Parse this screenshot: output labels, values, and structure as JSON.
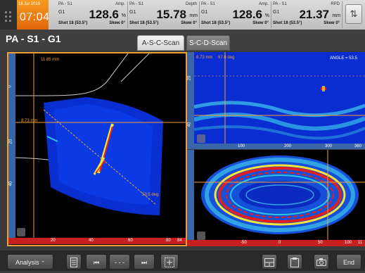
{
  "clock": {
    "date": "18 Jul 2019",
    "time": "07:04"
  },
  "readouts": [
    {
      "line1": "PA - S1",
      "unit_label": "Amp.",
      "line2": "G1",
      "value": "128.6",
      "unit": "%",
      "shot": "Shot 18 (53.5°)",
      "skew": "Skew 0°"
    },
    {
      "line1": "PA - S1",
      "unit_label": "Depth",
      "line2": "G1",
      "value": "15.78",
      "unit": "mm",
      "shot": "Shot 18 (53.5°)",
      "skew": "Skew 0°"
    },
    {
      "line1": "PA - S1",
      "unit_label": "Amp.",
      "line2": "G1",
      "value": "128.6",
      "unit": "%",
      "shot": "Shot 18 (53.5°)",
      "skew": "Skew 0°"
    },
    {
      "line1": "PA - S1",
      "unit_label": "RPD",
      "line2": "G1",
      "value": "21.37",
      "unit": "mm",
      "shot": "Shot 18 (53.5°)",
      "skew": "Skew 0°"
    }
  ],
  "swap_icon": "⇅",
  "page_title": "PA - S1 - G1",
  "tabs": {
    "asc": "A-S-C-Scan",
    "scd": "S-C-D-Scan"
  },
  "left_panel": {
    "depth_top": "11.85 mm",
    "depth_mid": "8.73 mm",
    "angle_label": "53.5 deg",
    "v_ticks": [
      "0",
      "20",
      "40"
    ],
    "h_ticks": [
      "20",
      "40",
      "60",
      "80",
      "84"
    ]
  },
  "top_right_panel": {
    "top_left_text": "8.73 mm",
    "top_mid_text": "67.6 deg",
    "angle_text": "ANGLE = 53.5",
    "v_ticks": [
      "20",
      "40"
    ],
    "h_ticks": [
      "100",
      "200",
      "300",
      "360"
    ]
  },
  "bottom_right_panel": {
    "h_ticks": [
      "-50",
      "0",
      "50",
      "100",
      "11"
    ]
  },
  "toolbar": {
    "analysis": "Analysis",
    "dashes": "- - -",
    "end": "End"
  },
  "icons": {
    "swap": "swap-icon",
    "doc": "document-icon",
    "first": "skip-first-icon",
    "last": "skip-last-icon",
    "cursor": "cursor-add-icon",
    "layout": "layout-icon",
    "report": "report-icon",
    "camera": "camera-icon"
  },
  "colors": {
    "accent": "#f0a030",
    "clock": "#ef8414",
    "ruler_blue": "#3a66a8",
    "ruler_red": "#c62020"
  }
}
